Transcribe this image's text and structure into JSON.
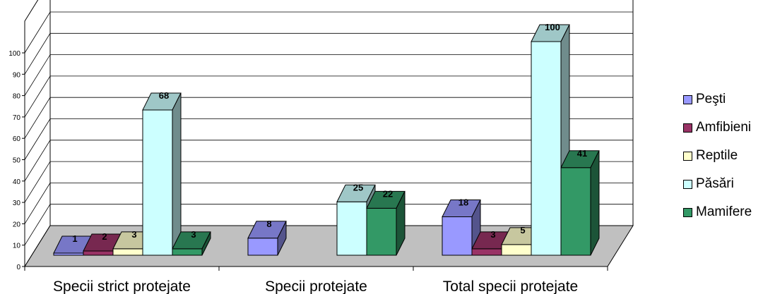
{
  "chart_data": {
    "type": "bar",
    "categories": [
      "Specii strict protejate",
      "Specii protejate",
      "Total specii protejate"
    ],
    "series": [
      {
        "name": "Peşti",
        "color": "#9999ff",
        "values": [
          1,
          8,
          18
        ]
      },
      {
        "name": "Amfibieni",
        "color": "#993366",
        "values": [
          2,
          0,
          3
        ]
      },
      {
        "name": "Reptile",
        "color": "#ffffcc",
        "values": [
          3,
          0,
          5
        ]
      },
      {
        "name": "Păsări",
        "color": "#ccffff",
        "values": [
          68,
          25,
          100
        ]
      },
      {
        "name": "Mamifere",
        "color": "#339966",
        "values": [
          3,
          22,
          41
        ]
      }
    ],
    "yticks": [
      "0",
      "10",
      "20",
      "30",
      "40",
      "50",
      "60",
      "70",
      "80",
      "90",
      "100"
    ],
    "ylim": [
      0,
      100
    ],
    "data_labels": [
      [
        "1",
        "2",
        "3",
        "68",
        "3"
      ],
      [
        "8",
        "",
        "",
        "25",
        "22"
      ],
      [
        "18",
        "3",
        "5",
        "100",
        "41"
      ]
    ],
    "legend_position": "right",
    "grid": true,
    "floor_color": "#c0c0c0"
  }
}
